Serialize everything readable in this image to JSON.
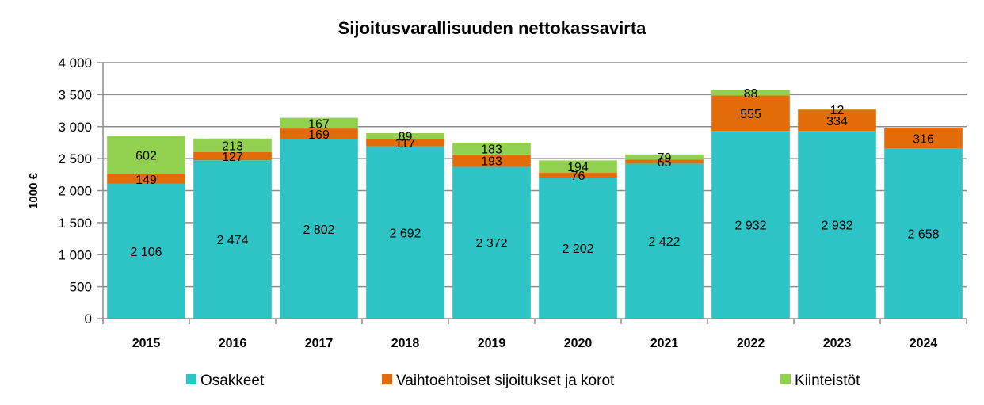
{
  "chart_data": {
    "type": "bar",
    "stacked": true,
    "title": "Sijoitusvarallisuuden nettokassavirta",
    "xlabel": "",
    "ylabel": "1000 €",
    "ylim": [
      0,
      4000
    ],
    "yticks": [
      0,
      500,
      1000,
      1500,
      2000,
      2500,
      3000,
      3500,
      4000
    ],
    "ytick_labels": [
      "0",
      "500",
      "1 000",
      "1 500",
      "2 000",
      "2 500",
      "3 000",
      "3 500",
      "4 000"
    ],
    "grid": true,
    "legend_position": "bottom",
    "categories": [
      "2015",
      "2016",
      "2017",
      "2018",
      "2019",
      "2020",
      "2021",
      "2022",
      "2023",
      "2024"
    ],
    "series": [
      {
        "name": "Osakkeet",
        "color": "#2ec4c6",
        "values": [
          2106,
          2474,
          2802,
          2692,
          2372,
          2202,
          2422,
          2932,
          2932,
          2658
        ],
        "labels": [
          "2 106",
          "2 474",
          "2 802",
          "2 692",
          "2 372",
          "2 202",
          "2 422",
          "2 932",
          "2 932",
          "2 658"
        ]
      },
      {
        "name": "Vaihtoehtoiset sijoitukset ja korot",
        "color": "#e36c0a",
        "values": [
          149,
          127,
          169,
          117,
          193,
          76,
          65,
          555,
          334,
          316
        ],
        "labels": [
          "149",
          "127",
          "169",
          "117",
          "193",
          "76",
          "65",
          "555",
          "334",
          "316"
        ]
      },
      {
        "name": "Kiinteistöt",
        "color": "#92d050",
        "values": [
          602,
          213,
          167,
          89,
          183,
          194,
          79,
          88,
          12,
          0
        ],
        "labels": [
          "602",
          "213",
          "167",
          "89",
          "183",
          "194",
          "79",
          "88",
          "12",
          ""
        ]
      }
    ]
  }
}
